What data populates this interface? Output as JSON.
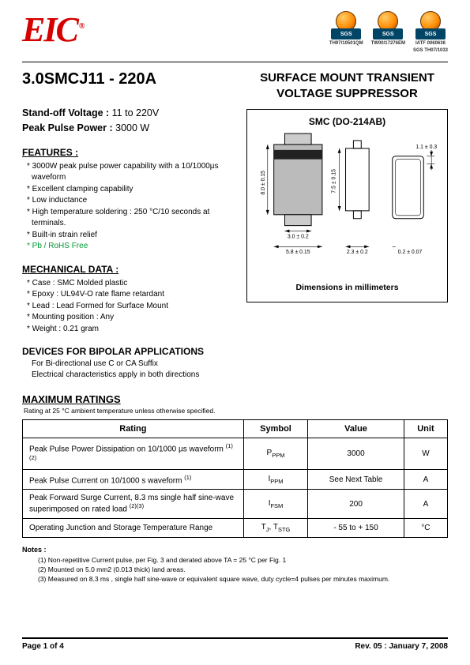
{
  "logo_text": "EIC",
  "certs": [
    {
      "badge": "SGS",
      "line1": "TH97/10501QM",
      "line2": ""
    },
    {
      "badge": "SGS",
      "line1": "TW00/17276EM",
      "line2": ""
    },
    {
      "badge": "SGS",
      "line1": "IATF 0060636",
      "line2": "SGS TH07/1033"
    }
  ],
  "part_number": "3.0SMCJ11 - 220A",
  "product_title_1": "SURFACE MOUNT TRANSIENT",
  "product_title_2": "VOLTAGE SUPPRESSOR",
  "standoff_label": "Stand-off Voltage :",
  "standoff_value": " 11 to 220V",
  "peakpower_label": "Peak Pulse Power :",
  "peakpower_value": " 3000 W",
  "features_head": "FEATURES :",
  "features": [
    "* 3000W peak pulse power capability with a 10/1000µs  waveform",
    "* Excellent clamping capability",
    "* Low inductance",
    "* High temperature soldering : 250 °C/10 seconds at terminals.",
    "* Built-in strain relief",
    "* Pb / RoHS Free"
  ],
  "mech_head": "MECHANICAL DATA :",
  "mech": [
    "*  Case :  SMC Molded plastic",
    "*  Epoxy : UL94V-O rate flame retardant",
    "*  Lead : Lead Formed for Surface Mount",
    "*  Mounting  position : Any",
    "*  Weight : 0.21 gram"
  ],
  "devices_head": "DEVICES FOR BIPOLAR APPLICATIONS",
  "devices_body": [
    "For Bi-directional use C or CA Suffix",
    "Electrical characteristics apply in both directions"
  ],
  "smc_title": "SMC (DO-214AB)",
  "dims": {
    "d_8_0": "8.0 ± 0.15",
    "d_7_5": "7.5 ± 0.15",
    "d_1_1": "1.1 ± 0.3",
    "d_3_0": "3.0  ± 0.2",
    "d_5_8": "5.8  ± 0.15",
    "d_2_3": "2.3 ± 0.2",
    "d_0_2": "0.2 ± 0.07"
  },
  "smc_caption": "Dimensions in millimeters",
  "max_head": "MAXIMUM RATINGS",
  "max_sub": "Rating at 25 °C ambient temperature unless otherwise specified.",
  "table": {
    "headers": [
      "Rating",
      "Symbol",
      "Value",
      "Unit"
    ],
    "rows": [
      {
        "rating_html": "Peak Pulse Power Dissipation on 10/1000 µs waveform <span class='sup'>(1) (2)</span>",
        "symbol_html": "P<span class='sub'>PPM</span>",
        "value": "3000",
        "unit": "W"
      },
      {
        "rating_html": "Peak Pulse Current on 10/1000 s waveform <span class='sup'>(1)</span>",
        "symbol_html": "I<span class='sub'>PPM</span>",
        "value": "See Next Table",
        "unit": "A"
      },
      {
        "rating_html": "Peak Forward Surge Current, 8.3 ms single half sine-wave superimposed on rated load <span class='sup'>(2)(3)</span>",
        "symbol_html": "I<span class='sub'>FSM</span>",
        "value": "200",
        "unit": "A"
      },
      {
        "rating_html": "Operating Junction and Storage Temperature Range",
        "symbol_html": "T<span class='sub'>J</span>, T<span class='sub'>STG</span>",
        "value": "- 55 to + 150",
        "unit": "°C"
      }
    ]
  },
  "notes_head": "Notes :",
  "notes": [
    "(1) Non-repetitive Current pulse, per Fig. 3 and derated above TA = 25 °C per Fig. 1",
    "(2) Mounted on 5.0 mm2 (0.013 thick) land areas.",
    "(3) Measured on 8.3 ms , single half sine-wave or equivalent square wave, duty cycle=4 pulses per minutes maximum."
  ],
  "footer_left": "Page 1 of 4",
  "footer_right": "Rev. 05 : January 7, 2008"
}
